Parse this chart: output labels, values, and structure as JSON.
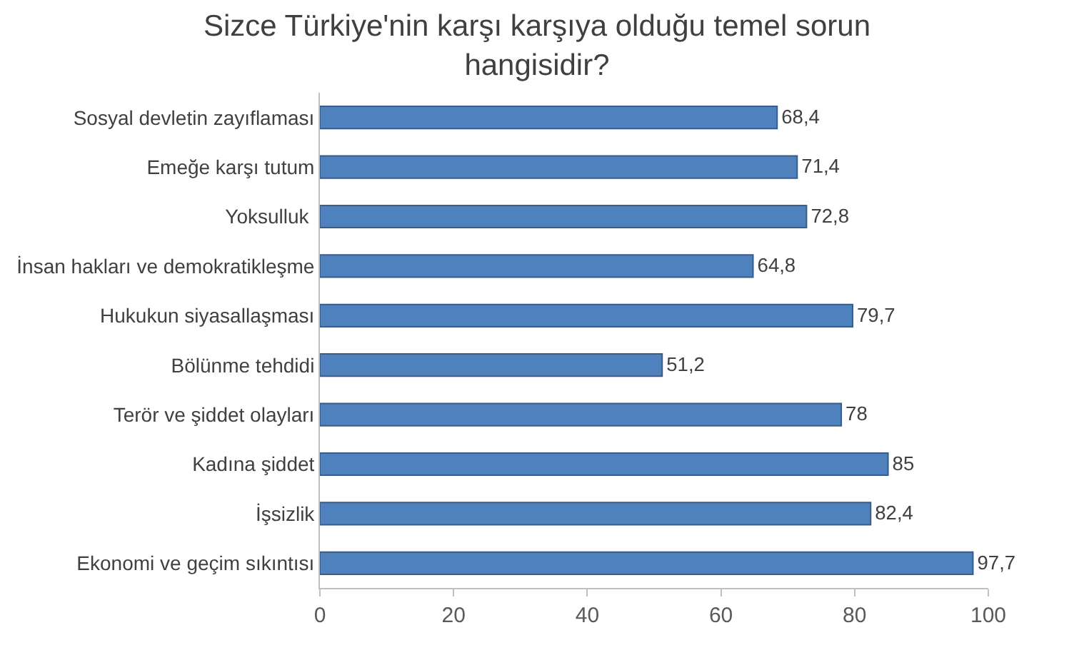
{
  "chart_data": {
    "type": "bar",
    "orientation": "horizontal",
    "title": "Sizce Türkiye'nin karşı karşıya olduğu temel sorun hangisidir?",
    "categories": [
      "Sosyal devletin zayıflaması",
      "Emeğe karşı tutum",
      "Yoksulluk ",
      "İnsan hakları ve demokratikleşme",
      "Hukukun siyasallaşması",
      "Bölünme tehdidi",
      "Terör ve şiddet olayları",
      "Kadına şiddet",
      "İşsizlik",
      "Ekonomi ve geçim sıkıntısı"
    ],
    "values": [
      68.4,
      71.4,
      72.8,
      64.8,
      79.7,
      51.2,
      78,
      85,
      82.4,
      97.7
    ],
    "value_labels": [
      "68,4",
      "71,4",
      "72,8",
      "64,8",
      "79,7",
      "51,2",
      "78",
      "85",
      "82,4",
      "97,7"
    ],
    "color": "#4f81bd",
    "xlim": [
      0,
      100
    ],
    "xticks": [
      0,
      20,
      40,
      60,
      80,
      100
    ]
  }
}
